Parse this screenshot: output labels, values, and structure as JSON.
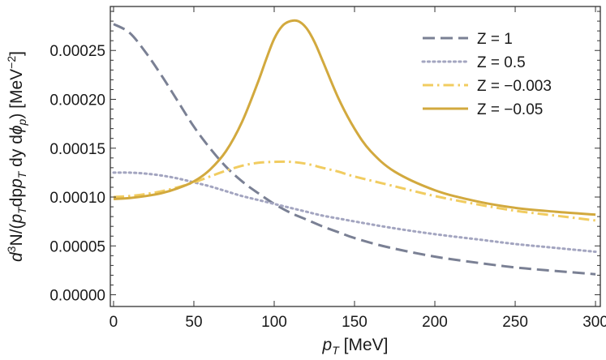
{
  "chart_data": {
    "type": "line",
    "title": "",
    "xlabel": {
      "var": "p",
      "sub": "T",
      "unit": " [MeV]"
    },
    "ylabel": {
      "d": "d",
      "sup3": "3",
      "text": "N/(",
      "pT": "p",
      "pTsub": "T",
      "mid": "dp",
      "mid2": " dy d",
      "phi": "ϕ",
      "phisub": "p",
      "tail": ") [MeV",
      "unitsup": "−2",
      "close": "]"
    },
    "xlim": [
      -2,
      303
    ],
    "ylim": [
      -1.2e-05,
      0.000295
    ],
    "x_ticks": [
      0,
      50,
      100,
      150,
      200,
      250,
      300
    ],
    "x_tick_labels": [
      "0",
      "50",
      "100",
      "150",
      "200",
      "250",
      "300"
    ],
    "y_ticks": [
      0.0,
      5e-05,
      0.0001,
      0.00015,
      0.0002,
      0.00025
    ],
    "y_tick_labels": [
      "0.00000",
      "0.00005",
      "0.00010",
      "0.00015",
      "0.00020",
      "0.00025"
    ],
    "legend_position": "top-right",
    "series": [
      {
        "name": "Z = 1",
        "color": "#7a8094",
        "style": "dashed",
        "x": [
          0,
          10,
          20,
          30,
          40,
          50,
          60,
          70,
          80,
          90,
          100,
          110,
          120,
          130,
          140,
          150,
          170,
          200,
          230,
          250,
          270,
          300
        ],
        "y": [
          0.000277,
          0.000268,
          0.000248,
          0.000224,
          0.000198,
          0.000172,
          0.00015,
          0.000131,
          0.000116,
          0.000104,
          9.3e-05,
          8.4e-05,
          7.7e-05,
          7e-05,
          6.4e-05,
          5.8e-05,
          4.9e-05,
          3.9e-05,
          3.2e-05,
          2.8e-05,
          2.5e-05,
          2.1e-05
        ]
      },
      {
        "name": "Z = 0.5",
        "color": "#a3a5c0",
        "style": "dotted",
        "x": [
          0,
          10,
          20,
          30,
          40,
          50,
          60,
          70,
          80,
          90,
          100,
          110,
          120,
          130,
          140,
          150,
          175,
          200,
          225,
          250,
          275,
          300
        ],
        "y": [
          0.000125,
          0.000125,
          0.000124,
          0.000122,
          0.000119,
          0.000115,
          0.000111,
          0.000106,
          0.000101,
          9.7e-05,
          9.3e-05,
          8.9e-05,
          8.5e-05,
          8.1e-05,
          7.8e-05,
          7.5e-05,
          6.8e-05,
          6.2e-05,
          5.7e-05,
          5.2e-05,
          4.8e-05,
          4.4e-05
        ]
      },
      {
        "name": "Z = −0.003",
        "color": "#f1cc60",
        "style": "dashdot",
        "x": [
          0,
          10,
          20,
          30,
          40,
          50,
          60,
          70,
          80,
          90,
          100,
          110,
          120,
          130,
          140,
          150,
          175,
          200,
          225,
          250,
          275,
          300
        ],
        "y": [
          0.0001,
          0.000101,
          0.000103,
          0.000106,
          0.00011,
          0.000115,
          0.000121,
          0.000127,
          0.000132,
          0.000135,
          0.000136,
          0.000136,
          0.000134,
          0.00013,
          0.000126,
          0.000121,
          0.000111,
          0.000101,
          9.3e-05,
          8.6e-05,
          8.1e-05,
          7.6e-05
        ]
      },
      {
        "name": "Z = −0.05",
        "color": "#d2a93e",
        "style": "solid",
        "x": [
          0,
          10,
          20,
          30,
          40,
          50,
          60,
          70,
          80,
          90,
          95,
          100,
          105,
          110,
          115,
          120,
          125,
          130,
          140,
          150,
          160,
          175,
          200,
          225,
          250,
          275,
          300
        ],
        "y": [
          9.8e-05,
          9.9e-05,
          0.000101,
          0.000104,
          0.000109,
          0.000116,
          0.000128,
          0.000147,
          0.000177,
          0.000218,
          0.000241,
          0.000262,
          0.000275,
          0.00028,
          0.00028,
          0.000273,
          0.000259,
          0.00024,
          0.000201,
          0.00017,
          0.000147,
          0.000126,
          0.000107,
          9.6e-05,
          8.9e-05,
          8.5e-05,
          8.2e-05
        ]
      }
    ]
  }
}
